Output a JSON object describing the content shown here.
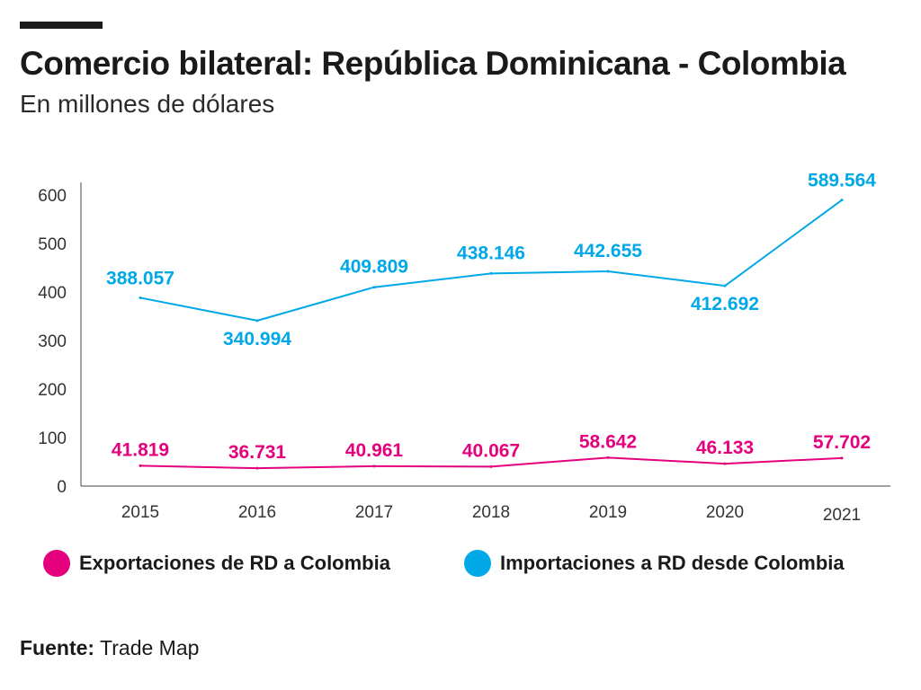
{
  "header": {
    "title": "Comercio bilateral: República Dominicana - Colombia",
    "subtitle": "En millones de dólares"
  },
  "legend": [
    {
      "label": "Exportaciones de RD a Colombia",
      "color": "#e5007e"
    },
    {
      "label": "Importaciones a RD desde Colombia",
      "color": "#00a8e8"
    }
  ],
  "source": {
    "label": "Fuente:",
    "value": "Trade Map"
  },
  "chart_data": {
    "type": "line",
    "title": "Comercio bilateral: República Dominicana - Colombia",
    "subtitle": "En millones de dólares",
    "x": [
      "2015",
      "2016",
      "2017",
      "2018",
      "2019",
      "2020",
      "2021"
    ],
    "ylim": [
      0,
      600
    ],
    "yticks": [
      0,
      100,
      200,
      300,
      400,
      500,
      600
    ],
    "grid": false,
    "legend_position": "bottom",
    "series": [
      {
        "name": "Importaciones a RD desde Colombia",
        "color": "#00a8e8",
        "values": [
          388.057,
          340.994,
          409.809,
          438.146,
          442.655,
          412.692,
          589.564
        ],
        "labels": [
          "388.057",
          "340.994",
          "409.809",
          "438.146",
          "442.655",
          "412.692",
          "589.564"
        ]
      },
      {
        "name": "Exportaciones de RD a Colombia",
        "color": "#e5007e",
        "values": [
          41.819,
          36.731,
          40.961,
          40.067,
          58.642,
          46.133,
          57.702
        ],
        "labels": [
          "41.819",
          "36.731",
          "40.961",
          "40.067",
          "58.642",
          "46.133",
          "57.702"
        ]
      }
    ]
  }
}
